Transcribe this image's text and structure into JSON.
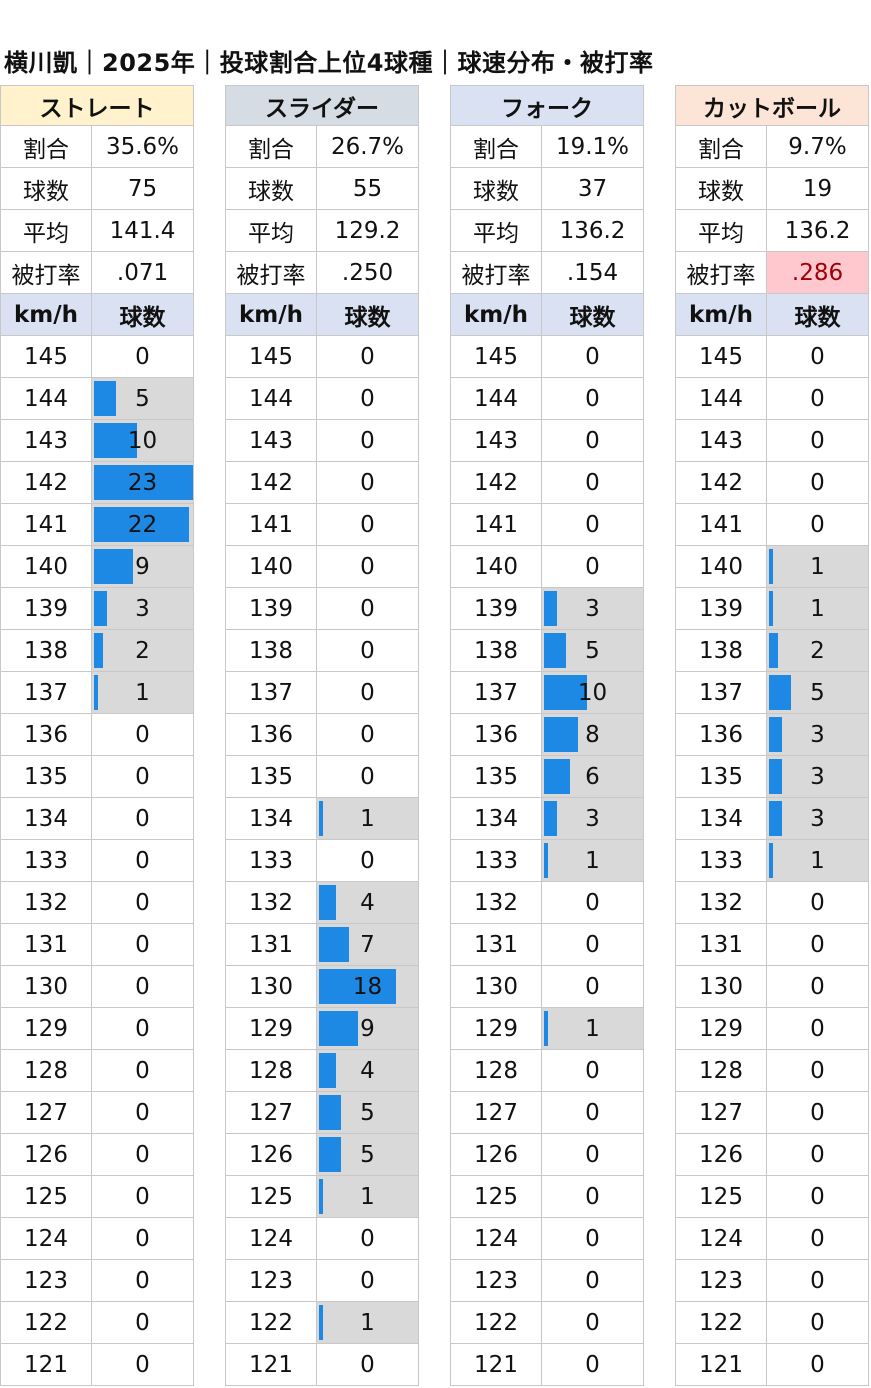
{
  "title": "横川凱｜2025年｜投球割合上位4球種｜球速分布・被打率",
  "labels": {
    "rate": "割合",
    "count": "球数",
    "avg": "平均",
    "bavg": "被打率",
    "kmh": "km/h",
    "balls": "球数"
  },
  "colors": {
    "bar": "#1e88e5",
    "bar_bg": "#d9d9d9",
    "subheader": "#d9e1f2",
    "highlight_bg": "#ffc7ce",
    "highlight_text": "#9c0006"
  },
  "chart_data": {
    "type": "bar",
    "title": "横川凱｜2025年｜投球割合上位4球種｜球速分布・被打率",
    "xlabel": "km/h",
    "ylabel": "球数",
    "categories": [
      145,
      144,
      143,
      142,
      141,
      140,
      139,
      138,
      137,
      136,
      135,
      134,
      133,
      132,
      131,
      130,
      129,
      128,
      127,
      126,
      125,
      124,
      123,
      122,
      121
    ],
    "bar_max": 23,
    "series": [
      {
        "name": "ストレート",
        "header_bg": "#fff2cc",
        "rate": "35.6%",
        "count": "75",
        "avg": "141.4",
        "bavg": ".071",
        "bavg_highlight": false,
        "values": [
          0,
          5,
          10,
          23,
          22,
          9,
          3,
          2,
          1,
          0,
          0,
          0,
          0,
          0,
          0,
          0,
          0,
          0,
          0,
          0,
          0,
          0,
          0,
          0,
          0
        ]
      },
      {
        "name": "スライダー",
        "header_bg": "#d6dce4",
        "rate": "26.7%",
        "count": "55",
        "avg": "129.2",
        "bavg": ".250",
        "bavg_highlight": false,
        "values": [
          0,
          0,
          0,
          0,
          0,
          0,
          0,
          0,
          0,
          0,
          0,
          1,
          0,
          4,
          7,
          18,
          9,
          4,
          5,
          5,
          1,
          0,
          0,
          1,
          0
        ]
      },
      {
        "name": "フォーク",
        "header_bg": "#d9e1f2",
        "rate": "19.1%",
        "count": "37",
        "avg": "136.2",
        "bavg": ".154",
        "bavg_highlight": false,
        "values": [
          0,
          0,
          0,
          0,
          0,
          0,
          3,
          5,
          10,
          8,
          6,
          3,
          1,
          0,
          0,
          0,
          1,
          0,
          0,
          0,
          0,
          0,
          0,
          0,
          0
        ]
      },
      {
        "name": "カットボール",
        "header_bg": "#fce4d6",
        "rate": "9.7%",
        "count": "19",
        "avg": "136.2",
        "bavg": ".286",
        "bavg_highlight": true,
        "values": [
          0,
          0,
          0,
          0,
          0,
          1,
          1,
          2,
          5,
          3,
          3,
          3,
          1,
          0,
          0,
          0,
          0,
          0,
          0,
          0,
          0,
          0,
          0,
          0,
          0
        ]
      }
    ]
  }
}
